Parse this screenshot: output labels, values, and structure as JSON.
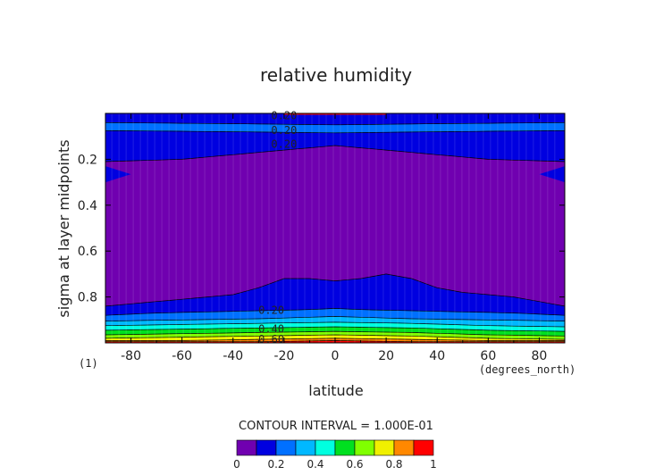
{
  "chart_data": {
    "type": "heatmap",
    "title": "relative humidity",
    "xlabel": "latitude",
    "ylabel": "sigma at layer midpoints",
    "x_units": "(degrees_north)",
    "panel_label": "(1)",
    "xlim": [
      -90,
      90
    ],
    "ylim": [
      1.0,
      0.0
    ],
    "x_ticks": [
      "-80",
      "-60",
      "-40",
      "-20",
      "0",
      "20",
      "40",
      "60",
      "80"
    ],
    "x_tick_values": [
      -80,
      -60,
      -40,
      -20,
      0,
      20,
      40,
      60,
      80
    ],
    "y_ticks": [
      "0.2",
      "0.4",
      "0.6",
      "0.8"
    ],
    "y_tick_values": [
      0.2,
      0.4,
      0.6,
      0.8
    ],
    "contour_interval_text": "CONTOUR INTERVAL = 1.000E-01",
    "contour_labels": [
      {
        "text": "0.20",
        "lat": -20,
        "sigma": 0.005
      },
      {
        "text": "0.20",
        "lat": -20,
        "sigma": 0.07
      },
      {
        "text": "0.20",
        "lat": -20,
        "sigma": 0.13
      },
      {
        "text": "0.20",
        "lat": -25,
        "sigma": 0.855
      },
      {
        "text": "0.40",
        "lat": -25,
        "sigma": 0.935
      },
      {
        "text": "0.60",
        "lat": -25,
        "sigma": 0.98
      }
    ],
    "levels": [
      0,
      0.1,
      0.2,
      0.3,
      0.4,
      0.5,
      0.6,
      0.7,
      0.8,
      0.9,
      1.0
    ],
    "colorbar_labels": [
      "0",
      "0.2",
      "0.4",
      "0.6",
      "0.8",
      "1"
    ],
    "colorbar_label_values": [
      0,
      0.2,
      0.4,
      0.6,
      0.8,
      1.0
    ],
    "colors": [
      "#7000b0",
      "#0000e0",
      "#0070ff",
      "#00b8ff",
      "#00ffe0",
      "#00e020",
      "#80ff00",
      "#f0f000",
      "#ff8800",
      "#ff0000",
      "#ff9a9a"
    ],
    "levels_near_top": [
      {
        "band": "0.0-0.1",
        "sigma_range": [
          0.0,
          0.005
        ]
      },
      {
        "band": "0.1-0.2",
        "sigma_range": [
          0.005,
          0.04
        ]
      },
      {
        "band": "0.2-0.3",
        "sigma_range": [
          0.04,
          0.07
        ]
      },
      {
        "band": "0.1-0.2",
        "sigma_range": [
          0.07,
          0.2
        ]
      }
    ],
    "low_humidity_core": {
      "value_range": [
        0.0,
        0.1
      ],
      "sigma_range": [
        0.2,
        0.75
      ]
    },
    "boundary_lines": [
      {
        "value": 0.1,
        "lat": [
          -90,
          -70,
          -50,
          -40,
          -30,
          -20,
          -10,
          0,
          10,
          20,
          30,
          40,
          50,
          70,
          90
        ],
        "sigma": [
          0.84,
          0.82,
          0.8,
          0.79,
          0.76,
          0.72,
          0.72,
          0.73,
          0.72,
          0.7,
          0.72,
          0.76,
          0.78,
          0.8,
          0.84
        ]
      },
      {
        "value": 0.2,
        "lat": [
          -90,
          -70,
          -50,
          -30,
          -10,
          0,
          10,
          30,
          50,
          70,
          90
        ],
        "sigma": [
          0.88,
          0.87,
          0.865,
          0.86,
          0.855,
          0.85,
          0.855,
          0.86,
          0.865,
          0.87,
          0.88
        ]
      },
      {
        "value": 0.3,
        "lat": [
          -90,
          -60,
          -30,
          0,
          30,
          60,
          90
        ],
        "sigma": [
          0.905,
          0.9,
          0.895,
          0.885,
          0.895,
          0.9,
          0.905
        ]
      },
      {
        "value": 0.4,
        "lat": [
          -90,
          -60,
          -30,
          0,
          30,
          60,
          90
        ],
        "sigma": [
          0.925,
          0.92,
          0.915,
          0.91,
          0.915,
          0.925,
          0.93
        ]
      },
      {
        "value": 0.5,
        "lat": [
          -90,
          -60,
          -30,
          0,
          30,
          60,
          90
        ],
        "sigma": [
          0.945,
          0.94,
          0.935,
          0.93,
          0.935,
          0.945,
          0.95
        ]
      },
      {
        "value": 0.6,
        "lat": [
          -90,
          -60,
          -30,
          0,
          30,
          60,
          90
        ],
        "sigma": [
          0.965,
          0.96,
          0.955,
          0.95,
          0.955,
          0.965,
          0.97
        ]
      },
      {
        "value": 0.7,
        "lat": [
          -90,
          -60,
          -30,
          0,
          30,
          60,
          90
        ],
        "sigma": [
          0.98,
          0.975,
          0.97,
          0.965,
          0.97,
          0.98,
          0.985
        ]
      },
      {
        "value": 0.8,
        "lat": [
          -60,
          -30,
          0,
          30,
          60
        ],
        "sigma": [
          0.99,
          0.985,
          0.98,
          0.985,
          0.99
        ]
      },
      {
        "value": 0.9,
        "lat": [
          -30,
          0,
          30
        ],
        "sigma": [
          0.995,
          0.99,
          0.995
        ]
      }
    ],
    "upper_band_lines": [
      {
        "value": 0.2,
        "lat": [
          -90,
          -40,
          0,
          40,
          90
        ],
        "sigma": [
          0.04,
          0.045,
          0.05,
          0.045,
          0.04
        ]
      },
      {
        "value": 0.2,
        "lat": [
          -90,
          -40,
          0,
          40,
          90
        ],
        "sigma": [
          0.075,
          0.08,
          0.085,
          0.08,
          0.075
        ]
      },
      {
        "value": 0.1,
        "lat": [
          -90,
          -60,
          -30,
          -10,
          0,
          10,
          30,
          60,
          90
        ],
        "sigma": [
          0.21,
          0.2,
          0.17,
          0.15,
          0.14,
          0.15,
          0.17,
          0.2,
          0.21
        ]
      }
    ]
  }
}
